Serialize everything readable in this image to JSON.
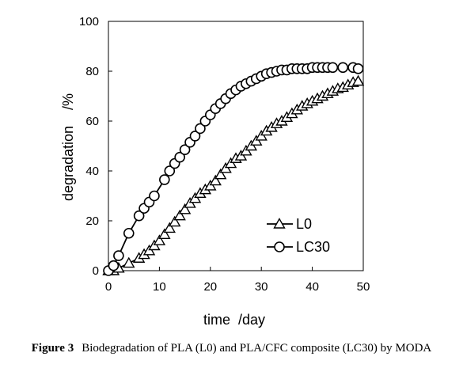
{
  "chart_data": {
    "type": "line",
    "title": "",
    "xlabel": "time  /day",
    "ylabel": "degradation    /%",
    "xlim": [
      0,
      50
    ],
    "ylim": [
      0,
      100
    ],
    "xticks": [
      0,
      10,
      20,
      30,
      40,
      50
    ],
    "yticks": [
      0,
      20,
      40,
      60,
      80,
      100
    ],
    "grid": false,
    "legend_position": "bottom-right",
    "series": [
      {
        "name": "L0",
        "marker": "triangle",
        "color": "#000000",
        "x": [
          0,
          1,
          2,
          4,
          6,
          7,
          8,
          9,
          10,
          11,
          12,
          13,
          14,
          15,
          16,
          17,
          18,
          19,
          20,
          21,
          22,
          23,
          24,
          25,
          26,
          27,
          28,
          29,
          30,
          31,
          32,
          33,
          34,
          35,
          36,
          37,
          38,
          39,
          40,
          41,
          42,
          43,
          44,
          45,
          46,
          47,
          48,
          49
        ],
        "y": [
          0,
          0,
          1,
          3,
          5,
          6.5,
          8,
          10,
          12,
          14.5,
          17,
          19.5,
          22,
          24.5,
          27,
          29,
          31,
          32.5,
          34,
          36,
          38.5,
          41,
          43,
          45,
          46,
          48,
          50,
          52,
          54,
          56,
          57.5,
          59,
          60,
          61.5,
          63,
          64.5,
          66,
          67,
          68,
          69,
          70,
          71,
          72,
          73,
          73.5,
          74.5,
          75.5,
          76
        ]
      },
      {
        "name": "LC30",
        "marker": "circle",
        "color": "#000000",
        "x": [
          0,
          1,
          2,
          4,
          6,
          7,
          8,
          9,
          11,
          12,
          13,
          14,
          15,
          16,
          17,
          18,
          19,
          20,
          21,
          22,
          23,
          24,
          25,
          26,
          27,
          28,
          29,
          30,
          31,
          32,
          33,
          34,
          35,
          36,
          37,
          38,
          39,
          40,
          41,
          42,
          43,
          44,
          46,
          48,
          49
        ],
        "y": [
          0,
          2,
          6,
          15,
          22,
          25,
          27.5,
          30,
          36.5,
          40,
          43,
          45.5,
          48.5,
          51.5,
          54,
          57,
          60,
          62.5,
          65,
          67,
          69,
          71,
          72.5,
          74,
          75,
          76,
          77,
          78,
          79,
          79.5,
          80,
          80.5,
          80.5,
          81,
          81,
          81,
          81,
          81.5,
          81.5,
          81.5,
          81.5,
          81.5,
          81.5,
          81.5,
          81
        ]
      }
    ]
  },
  "caption": {
    "label": "Figure 3",
    "text": "Biodegradation of PLA (L0) and PLA/CFC composite (LC30) by MODA"
  }
}
